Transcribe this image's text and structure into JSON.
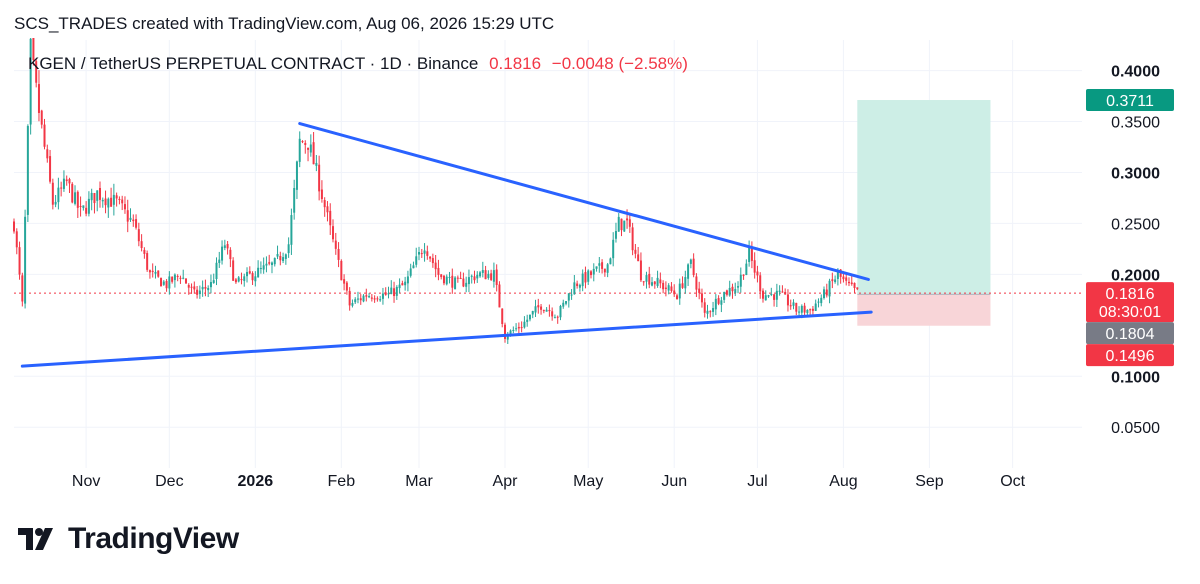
{
  "header": {
    "attribution": "SCS_TRADES created with TradingView.com, Aug 06, 2026 15:29 UTC"
  },
  "legend": {
    "symbol": "KGEN / TetherUS PERPETUAL CONTRACT · 1D · Binance",
    "price": "0.1816",
    "change": "−0.0048 (−2.58%)"
  },
  "footer": {
    "brand": "TradingView"
  },
  "colors": {
    "bull": "#26a69a",
    "bear": "#f23645",
    "trendline": "#2962ff",
    "target_zone": "#cdeee6",
    "stop_zone": "#f8d5d8",
    "target_label": "#089981",
    "current_label": "#f23645",
    "entry_label": "#787b86",
    "stop_label": "#f23645"
  },
  "chart_data": {
    "type": "candlestick",
    "title": "KGEN / TetherUS PERPETUAL CONTRACT · 1D · Binance",
    "x_ticks": [
      {
        "label": "Nov",
        "date": "2025-11-01"
      },
      {
        "label": "Dec",
        "date": "2025-12-01"
      },
      {
        "label": "2026",
        "date": "2026-01-01",
        "bold": true
      },
      {
        "label": "Feb",
        "date": "2026-02-01"
      },
      {
        "label": "Mar",
        "date": "2026-03-01"
      },
      {
        "label": "Apr",
        "date": "2026-04-01"
      },
      {
        "label": "May",
        "date": "2026-05-01"
      },
      {
        "label": "Jun",
        "date": "2026-06-01"
      },
      {
        "label": "Jul",
        "date": "2026-07-01"
      },
      {
        "label": "Aug",
        "date": "2026-08-01"
      },
      {
        "label": "Sep",
        "date": "2026-09-01"
      },
      {
        "label": "Oct",
        "date": "2026-10-01"
      }
    ],
    "y_ticks": [
      {
        "label": "0.4000",
        "value": 0.4,
        "bold": true
      },
      {
        "label": "0.3500",
        "value": 0.35,
        "bold": false
      },
      {
        "label": "0.3000",
        "value": 0.3,
        "bold": true
      },
      {
        "label": "0.2500",
        "value": 0.25,
        "bold": false
      },
      {
        "label": "0.2000",
        "value": 0.2,
        "bold": true
      },
      {
        "label": "0.1000",
        "value": 0.1,
        "bold": true
      },
      {
        "label": "0.0500",
        "value": 0.05,
        "bold": false
      }
    ],
    "y_range": [
      0.01,
      0.43
    ],
    "x_range": [
      "2025-10-06",
      "2026-10-26"
    ],
    "price_path": [
      [
        "2025-10-06",
        0.25
      ],
      [
        "2025-10-09",
        0.17
      ],
      [
        "2025-10-12",
        0.42
      ],
      [
        "2025-10-15",
        0.36
      ],
      [
        "2025-10-20",
        0.27
      ],
      [
        "2025-10-25",
        0.29
      ],
      [
        "2025-10-30",
        0.26
      ],
      [
        "2025-11-05",
        0.28
      ],
      [
        "2025-11-12",
        0.27
      ],
      [
        "2025-11-18",
        0.25
      ],
      [
        "2025-11-24",
        0.2
      ],
      [
        "2025-11-30",
        0.19
      ],
      [
        "2025-12-05",
        0.2
      ],
      [
        "2025-12-10",
        0.18
      ],
      [
        "2025-12-16",
        0.19
      ],
      [
        "2025-12-21",
        0.23
      ],
      [
        "2025-12-25",
        0.19
      ],
      [
        "2025-12-31",
        0.2
      ],
      [
        "2026-01-08",
        0.21
      ],
      [
        "2026-01-13",
        0.23
      ],
      [
        "2026-01-17",
        0.33
      ],
      [
        "2026-01-20",
        0.33
      ],
      [
        "2026-01-24",
        0.29
      ],
      [
        "2026-01-30",
        0.22
      ],
      [
        "2026-02-04",
        0.17
      ],
      [
        "2026-02-10",
        0.18
      ],
      [
        "2026-02-18",
        0.18
      ],
      [
        "2026-02-24",
        0.19
      ],
      [
        "2026-03-03",
        0.23
      ],
      [
        "2026-03-08",
        0.2
      ],
      [
        "2026-03-15",
        0.19
      ],
      [
        "2026-03-22",
        0.2
      ],
      [
        "2026-03-28",
        0.2
      ],
      [
        "2026-04-01",
        0.14
      ],
      [
        "2026-04-07",
        0.15
      ],
      [
        "2026-04-14",
        0.17
      ],
      [
        "2026-04-20",
        0.16
      ],
      [
        "2026-04-26",
        0.19
      ],
      [
        "2026-05-02",
        0.2
      ],
      [
        "2026-05-08",
        0.21
      ],
      [
        "2026-05-12",
        0.25
      ],
      [
        "2026-05-15",
        0.25
      ],
      [
        "2026-05-20",
        0.2
      ],
      [
        "2026-05-27",
        0.19
      ],
      [
        "2026-06-02",
        0.18
      ],
      [
        "2026-06-07",
        0.21
      ],
      [
        "2026-06-12",
        0.16
      ],
      [
        "2026-06-18",
        0.18
      ],
      [
        "2026-06-24",
        0.19
      ],
      [
        "2026-06-28",
        0.22
      ],
      [
        "2026-07-03",
        0.18
      ],
      [
        "2026-07-09",
        0.18
      ],
      [
        "2026-07-15",
        0.165
      ],
      [
        "2026-07-20",
        0.165
      ],
      [
        "2026-07-25",
        0.18
      ],
      [
        "2026-07-30",
        0.2
      ],
      [
        "2026-08-02",
        0.19
      ],
      [
        "2026-08-06",
        0.1816
      ]
    ],
    "trendlines": [
      {
        "name": "descending resistance",
        "from": [
          "2026-01-17",
          0.348
        ],
        "to": [
          "2026-08-10",
          0.195
        ]
      },
      {
        "name": "ascending support",
        "from": [
          "2025-10-09",
          0.11
        ],
        "to": [
          "2026-08-11",
          0.163
        ]
      }
    ],
    "position": {
      "start": "2026-08-06",
      "end": "2026-09-23",
      "target": 0.3711,
      "entry": 0.1804,
      "stop": 0.1496
    },
    "price_labels": [
      {
        "value": 0.3711,
        "text": "0.3711",
        "kind": "target"
      },
      {
        "value": 0.1816,
        "text": "0.1816",
        "countdown": "08:30:01",
        "kind": "current"
      },
      {
        "value": 0.1804,
        "text": "0.1804",
        "kind": "entry"
      },
      {
        "value": 0.1496,
        "text": "0.1496",
        "kind": "stop"
      }
    ],
    "current_price": 0.1816
  }
}
